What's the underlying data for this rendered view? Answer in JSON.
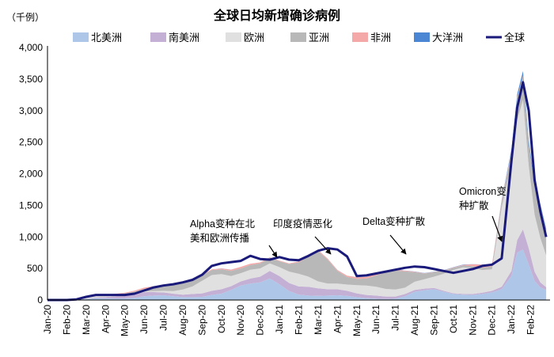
{
  "chart_data": {
    "type": "area",
    "title": "全球日均新增确诊病例",
    "ylabel": "（千例）",
    "ylim": [
      0,
      4000
    ],
    "yticks": [
      "0",
      "500",
      "1,000",
      "1,500",
      "2,000",
      "2,500",
      "3,000",
      "3,500",
      "4,000"
    ],
    "ytick_values": [
      0,
      500,
      1000,
      1500,
      2000,
      2500,
      3000,
      3500,
      4000
    ],
    "xticks": [
      "Jan-20",
      "Feb-20",
      "Mar-20",
      "Apr-20",
      "May-20",
      "Jun-20",
      "Jul-20",
      "Aug-20",
      "Sep-20",
      "Oct-20",
      "Nov-20",
      "Dec-20",
      "Jan-21",
      "Feb-21",
      "Mar-21",
      "Apr-21",
      "May-21",
      "Jun-21",
      "Jul-21",
      "Aug-21",
      "Sep-21",
      "Oct-21",
      "Nov-21",
      "Dec-21",
      "Jan-22",
      "Feb-22"
    ],
    "x": [
      0,
      0.5,
      1,
      1.5,
      2,
      2.5,
      3,
      3.5,
      4,
      4.5,
      5,
      5.5,
      6,
      6.5,
      7,
      7.5,
      8,
      8.5,
      9,
      9.5,
      10,
      10.5,
      11,
      11.5,
      12,
      12.5,
      13,
      13.5,
      14,
      14.5,
      15,
      15.5,
      16,
      16.5,
      17,
      17.5,
      18,
      18.5,
      19,
      19.5,
      20,
      20.5,
      21,
      21.5,
      22,
      22.5,
      23,
      23.5,
      24,
      24.3,
      24.6,
      24.9,
      25.2,
      25.5,
      25.8
    ],
    "legend_position": "top",
    "series": [
      {
        "name": "北美洲",
        "color": "#aec7e8",
        "values": [
          0,
          0,
          0,
          2,
          15,
          30,
          28,
          25,
          25,
          35,
          60,
          70,
          75,
          60,
          45,
          45,
          50,
          80,
          100,
          160,
          230,
          260,
          280,
          340,
          250,
          140,
          85,
          70,
          65,
          70,
          75,
          65,
          45,
          30,
          20,
          15,
          20,
          60,
          130,
          155,
          170,
          130,
          95,
          85,
          80,
          95,
          120,
          170,
          380,
          750,
          800,
          560,
          300,
          200,
          160
        ]
      },
      {
        "name": "南美洲",
        "color": "#c5b0d5",
        "values": [
          0,
          0,
          0,
          0,
          2,
          10,
          20,
          35,
          50,
          60,
          65,
          55,
          45,
          40,
          40,
          50,
          55,
          65,
          70,
          60,
          65,
          80,
          90,
          120,
          130,
          130,
          130,
          140,
          120,
          100,
          95,
          80,
          60,
          50,
          50,
          40,
          35,
          35,
          30,
          25,
          20,
          15,
          12,
          12,
          15,
          20,
          25,
          40,
          80,
          200,
          320,
          260,
          150,
          80,
          45
        ]
      },
      {
        "name": "欧洲",
        "color": "#e0e0e0",
        "values": [
          0,
          0,
          0,
          5,
          25,
          30,
          20,
          15,
          10,
          8,
          10,
          15,
          25,
          40,
          80,
          120,
          200,
          250,
          240,
          160,
          130,
          140,
          130,
          120,
          140,
          180,
          200,
          160,
          110,
          90,
          90,
          100,
          130,
          150,
          140,
          120,
          110,
          100,
          130,
          150,
          180,
          270,
          370,
          420,
          410,
          360,
          340,
          1250,
          1700,
          1900,
          2050,
          1300,
          900,
          700,
          500
        ]
      },
      {
        "name": "亚洲",
        "color": "#b8b8b8",
        "values": [
          0,
          0,
          0,
          0,
          2,
          5,
          10,
          15,
          20,
          30,
          40,
          60,
          80,
          110,
          120,
          110,
          90,
          80,
          75,
          80,
          75,
          75,
          80,
          85,
          95,
          120,
          180,
          320,
          480,
          380,
          200,
          120,
          100,
          110,
          180,
          260,
          300,
          260,
          150,
          90,
          70,
          50,
          35,
          30,
          30,
          35,
          50,
          100,
          180,
          350,
          380,
          350,
          450,
          500,
          400
        ]
      },
      {
        "name": "非洲",
        "color": "#f4a9a8",
        "values": [
          0,
          0,
          0,
          0,
          0,
          1,
          3,
          6,
          10,
          15,
          20,
          18,
          10,
          8,
          7,
          6,
          7,
          10,
          15,
          20,
          25,
          20,
          15,
          10,
          8,
          10,
          15,
          20,
          18,
          15,
          15,
          20,
          25,
          25,
          22,
          18,
          15,
          10,
          8,
          5,
          5,
          5,
          5,
          10,
          30,
          50,
          30,
          20,
          15,
          10,
          8,
          6,
          5,
          5,
          5
        ]
      },
      {
        "name": "大洋洲",
        "color": "#4a86d4",
        "values": [
          0,
          0,
          0,
          0,
          0,
          0,
          0,
          0,
          0,
          0,
          1,
          1,
          1,
          1,
          1,
          1,
          1,
          1,
          1,
          1,
          1,
          1,
          1,
          1,
          1,
          1,
          1,
          1,
          1,
          1,
          1,
          1,
          2,
          2,
          2,
          2,
          3,
          3,
          3,
          3,
          3,
          3,
          3,
          3,
          3,
          3,
          3,
          10,
          30,
          50,
          70,
          60,
          40,
          30,
          25
        ]
      },
      {
        "name": "全球",
        "color": "#1a1a7a",
        "line": true,
        "values": [
          0,
          0,
          0,
          10,
          50,
          80,
          80,
          80,
          80,
          100,
          150,
          200,
          230,
          250,
          280,
          320,
          400,
          540,
          580,
          600,
          620,
          700,
          650,
          640,
          680,
          640,
          630,
          700,
          780,
          820,
          800,
          690,
          380,
          390,
          420,
          450,
          480,
          510,
          530,
          520,
          490,
          460,
          430,
          460,
          490,
          540,
          560,
          660,
          2200,
          3050,
          3450,
          3000,
          1900,
          1400,
          1000
        ]
      }
    ],
    "annotations": [
      {
        "lines": [
          "Alpha变种在北",
          "美和欧洲传播"
        ],
        "x": 11.8,
        "y": 650
      },
      {
        "lines": [
          "印度疫情恶化"
        ],
        "x": 14.9,
        "y": 710
      },
      {
        "lines": [
          "Delta变种扩散"
        ],
        "x": 18.5,
        "y": 640
      },
      {
        "lines": [
          "Omicron变",
          "种扩散"
        ],
        "x": 23.7,
        "y": 900
      }
    ]
  }
}
